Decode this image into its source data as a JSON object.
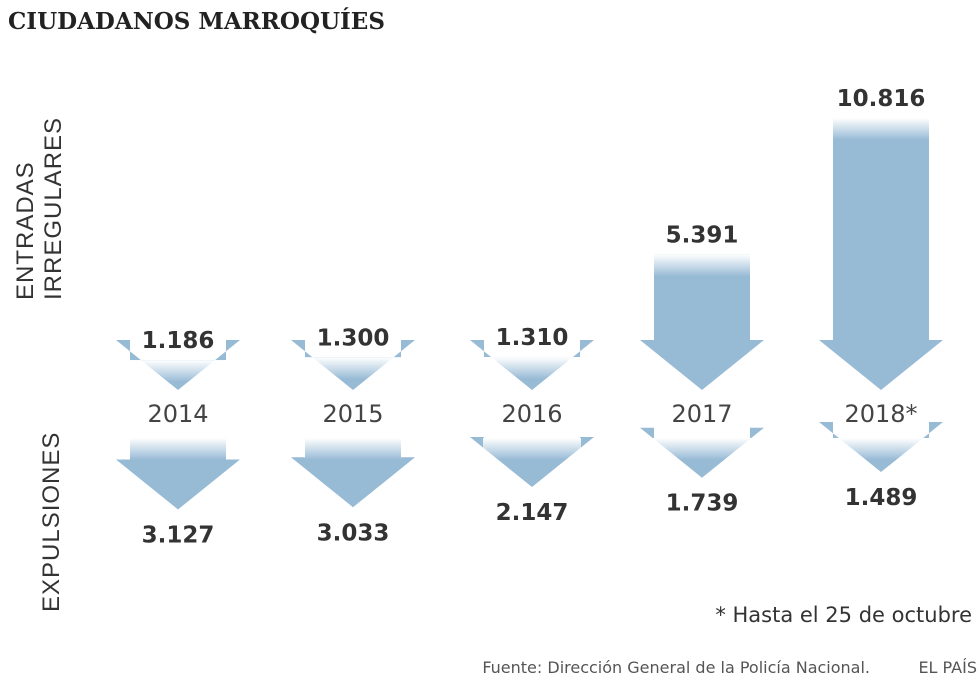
{
  "chart_data": {
    "type": "bar",
    "title": "CIUDADANOS MARROQUÍES",
    "categories": [
      "2014",
      "2015",
      "2016",
      "2017",
      "2018*"
    ],
    "series": [
      {
        "name": "ENTRADAS IRREGULARES",
        "values": [
          1186,
          1300,
          1310,
          5391,
          10816
        ]
      },
      {
        "name": "EXPULSIONES",
        "values": [
          3127,
          3033,
          2147,
          1739,
          1489
        ]
      }
    ],
    "value_labels_top": [
      "1.186",
      "1.300",
      "1.310",
      "5.391",
      "10.816"
    ],
    "value_labels_bottom": [
      "3.127",
      "3.033",
      "2.147",
      "1.739",
      "1.489"
    ],
    "side_label_top_lines": [
      "ENTRADAS",
      "IRREGULARES"
    ],
    "side_label_bottom": "EXPULSIONES",
    "colors": {
      "bar": "#97bad5",
      "text": "#333333"
    }
  },
  "footnote": "* Hasta el 25 de octubre",
  "source": "Fuente: Dirección General de la Policía Nacional.",
  "brand": "EL PAÍS"
}
